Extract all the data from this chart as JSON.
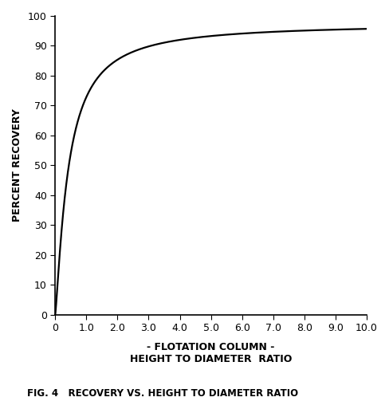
{
  "title": "FIG. 4   RECOVERY VS. HEIGHT TO DIAMETER RATIO",
  "xlabel_line1": "- FLOTATION COLUMN -",
  "xlabel_line2": "HEIGHT TO DIAMETER  RATIO",
  "ylabel": "PERCENT RECOVERY",
  "xlim": [
    0,
    10.0
  ],
  "ylim": [
    0,
    100
  ],
  "xticks": [
    0,
    1.0,
    2.0,
    3.0,
    4.0,
    5.0,
    6.0,
    7.0,
    8.0,
    9.0,
    10.0
  ],
  "yticks": [
    0,
    10,
    20,
    30,
    40,
    50,
    60,
    70,
    80,
    90,
    100
  ],
  "curve_color": "#000000",
  "curve_linewidth": 1.6,
  "background_color": "#ffffff",
  "axis_bg_color": "#ffffff",
  "hill_a": 0.42,
  "hill_b": 1.25,
  "hill_max": 97.5
}
